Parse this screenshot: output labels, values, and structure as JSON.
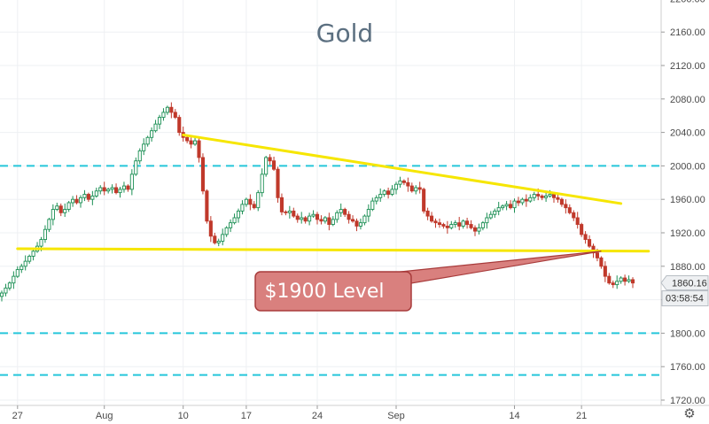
{
  "chart_data": {
    "type": "candlestick",
    "title": "Gold",
    "y_axis": {
      "position": "right",
      "ylim": [
        1700,
        2220
      ],
      "ticks": [
        1720,
        1760,
        1800,
        1840,
        1880,
        1920,
        1960,
        2000,
        2040,
        2080,
        2120,
        2160,
        2200
      ],
      "tick_labels": [
        "1720.00",
        "1760.00",
        "1800.00",
        "1840.00",
        "1880.00",
        "1920.00",
        "1960.00",
        "2000.00",
        "2040.00",
        "2080.00",
        "2120.00",
        "2160.00",
        "2200.00"
      ]
    },
    "x_axis": {
      "tick_labels": [
        "27",
        "Aug",
        "10",
        "17",
        "24",
        "Sep",
        "14",
        "21"
      ],
      "tick_index": [
        4,
        26,
        46,
        62,
        80,
        100,
        130,
        147
      ]
    },
    "last_price": "1860.16",
    "countdown": "03:58:54",
    "colors": {
      "up": "#26a69a",
      "down": "#ef5350",
      "candle_up": "#1b8f54",
      "candle_down": "#c0392b",
      "trendline": "#f6e600",
      "dashed_level": "#26c6da",
      "callout_fill": "#d9807e",
      "callout_border": "#a83b3b"
    },
    "dashed_levels": [
      2000,
      1800,
      1750
    ],
    "trendlines": [
      {
        "name": "descending",
        "from": {
          "i": 46,
          "price": 2037
        },
        "to": {
          "i": 157,
          "price": 1955
        }
      },
      {
        "name": "support",
        "from": {
          "i": 4,
          "price": 1901
        },
        "to": {
          "i": 164,
          "price": 1898
        }
      }
    ],
    "annotation": {
      "text": "$1900 Level",
      "anchor": {
        "i": 152,
        "price": 1898
      }
    },
    "closes": [
      1848,
      1854,
      1860,
      1868,
      1876,
      1880,
      1886,
      1892,
      1898,
      1904,
      1912,
      1924,
      1936,
      1948,
      1952,
      1944,
      1948,
      1956,
      1960,
      1956,
      1962,
      1966,
      1960,
      1964,
      1970,
      1974,
      1970,
      1972,
      1974,
      1968,
      1972,
      1976,
      1972,
      1990,
      2006,
      2018,
      2026,
      2034,
      2042,
      2050,
      2058,
      2064,
      2070,
      2064,
      2058,
      2040,
      2034,
      2030,
      2026,
      2030,
      2010,
      1970,
      1934,
      1916,
      1908,
      1910,
      1918,
      1926,
      1932,
      1938,
      1946,
      1954,
      1960,
      1954,
      1950,
      1968,
      1990,
      2010,
      2006,
      1996,
      1962,
      1945,
      1944,
      1946,
      1940,
      1936,
      1938,
      1934,
      1940,
      1942,
      1936,
      1934,
      1938,
      1930,
      1936,
      1944,
      1948,
      1942,
      1936,
      1934,
      1928,
      1932,
      1940,
      1948,
      1958,
      1962,
      1966,
      1970,
      1966,
      1972,
      1978,
      1982,
      1980,
      1976,
      1970,
      1974,
      1972,
      1946,
      1940,
      1934,
      1932,
      1930,
      1928,
      1926,
      1930,
      1932,
      1928,
      1934,
      1930,
      1926,
      1922,
      1926,
      1932,
      1938,
      1942,
      1946,
      1950,
      1952,
      1954,
      1950,
      1958,
      1956,
      1960,
      1958,
      1962,
      1966,
      1964,
      1962,
      1964,
      1966,
      1962,
      1960,
      1954,
      1950,
      1944,
      1938,
      1930,
      1918,
      1912,
      1904,
      1896,
      1890,
      1880,
      1868,
      1860,
      1858,
      1862,
      1866,
      1862,
      1864,
      1860
    ]
  }
}
